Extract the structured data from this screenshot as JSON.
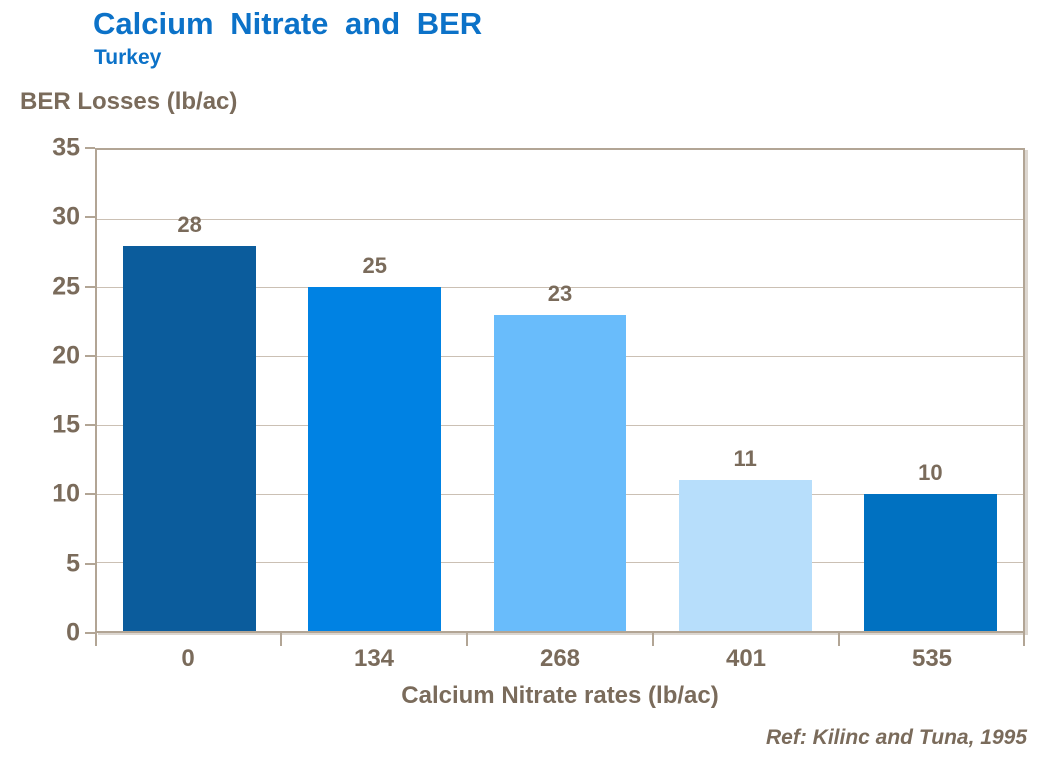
{
  "header": {
    "title": "Calcium Nitrate and BER",
    "subtitle": "Turkey"
  },
  "colors": {
    "title_blue": "#0C72C8",
    "axis_text": "#7A6B5B",
    "plot_border": "#B2A595",
    "gridline": "#CBC0B4",
    "bar_colors": [
      "#0B5C9C",
      "#0082E3",
      "#69BCFB",
      "#B7DEFB",
      "#0071C1"
    ]
  },
  "chart_data": {
    "type": "bar",
    "title": "Calcium Nitrate and BER",
    "subtitle": "Turkey",
    "categories": [
      "0",
      "134",
      "268",
      "401",
      "535"
    ],
    "values": [
      28,
      25,
      23,
      11,
      10
    ],
    "xlabel": "Calcium Nitrate rates (lb/ac)",
    "ylabel": "BER Losses (lb/ac)",
    "ylim": [
      0,
      35
    ],
    "yticks": [
      0,
      5,
      10,
      15,
      20,
      25,
      30,
      35
    ],
    "grid": true,
    "legend": false,
    "data_labels": true,
    "reference": "Ref: Kilinc and Tuna, 1995"
  }
}
